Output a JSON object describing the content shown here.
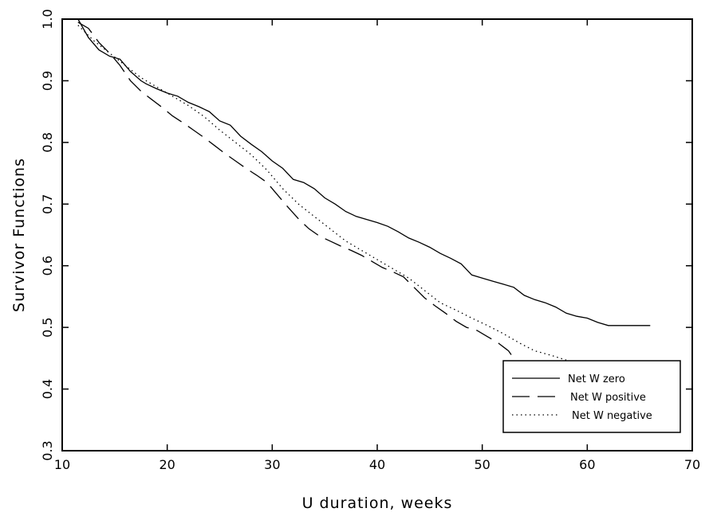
{
  "chart_data": {
    "type": "line",
    "title": "",
    "xlabel": "U duration, weeks",
    "ylabel": "Survivor Functions",
    "xlim": [
      10,
      70
    ],
    "ylim": [
      0.3,
      1.0
    ],
    "x_ticks": [
      "10",
      "20",
      "30",
      "40",
      "50",
      "60",
      "70"
    ],
    "y_ticks": [
      "0.3",
      "0.4",
      "0.5",
      "0.6",
      "0.7",
      "0.8",
      "0.9",
      "1.0"
    ],
    "grid": false,
    "legend_position": "bottom-right",
    "series": [
      {
        "name": "Net W zero",
        "style": "solid",
        "x": [
          11.5,
          12.5,
          13.5,
          14.5,
          15.5,
          16.5,
          17.5,
          18,
          19,
          20,
          21,
          22,
          23,
          24,
          25,
          26,
          27,
          28,
          29,
          30,
          31,
          32,
          33,
          34,
          35,
          36,
          37,
          38,
          39,
          40,
          41,
          42,
          43,
          44,
          45,
          46,
          47,
          48,
          49,
          50,
          51,
          52,
          53,
          54,
          55,
          56,
          57,
          58,
          59,
          60,
          61,
          62,
          63,
          64,
          65,
          66
        ],
        "y": [
          1.0,
          0.97,
          0.95,
          0.94,
          0.935,
          0.915,
          0.9,
          0.895,
          0.887,
          0.88,
          0.875,
          0.865,
          0.858,
          0.85,
          0.835,
          0.828,
          0.81,
          0.797,
          0.785,
          0.77,
          0.758,
          0.74,
          0.735,
          0.725,
          0.71,
          0.7,
          0.688,
          0.68,
          0.675,
          0.67,
          0.664,
          0.655,
          0.645,
          0.638,
          0.63,
          0.62,
          0.612,
          0.603,
          0.585,
          0.58,
          0.575,
          0.57,
          0.565,
          0.552,
          0.545,
          0.54,
          0.533,
          0.523,
          0.518,
          0.515,
          0.508,
          0.503,
          0.503,
          0.503,
          0.503,
          0.503
        ]
      },
      {
        "name": "Net W positive",
        "style": "dashed",
        "x": [
          11.5,
          12.5,
          13.5,
          14.5,
          15.5,
          16.5,
          17.5,
          18.5,
          19.5,
          20.5,
          21.5,
          22.5,
          23.5,
          24.5,
          25.5,
          26.5,
          27.5,
          28.5,
          29.5,
          30.5,
          31.5,
          32.5,
          33.5,
          34.5,
          35.5,
          36.5,
          37.5,
          38.5,
          39.5,
          40.5,
          41.5,
          42.5,
          43.5,
          44.5,
          45.5,
          46.5,
          47.5,
          48.5,
          49.5,
          50.5,
          51.5,
          52.5,
          53
        ],
        "y": [
          0.995,
          0.985,
          0.962,
          0.945,
          0.925,
          0.9,
          0.883,
          0.87,
          0.857,
          0.843,
          0.832,
          0.82,
          0.808,
          0.795,
          0.782,
          0.77,
          0.758,
          0.747,
          0.735,
          0.715,
          0.695,
          0.676,
          0.66,
          0.648,
          0.64,
          0.632,
          0.625,
          0.617,
          0.607,
          0.597,
          0.59,
          0.582,
          0.565,
          0.548,
          0.535,
          0.523,
          0.51,
          0.5,
          0.495,
          0.485,
          0.475,
          0.462,
          0.45
        ]
      },
      {
        "name": "Net W negative",
        "style": "dotted",
        "x": [
          11.5,
          13,
          14.5,
          16,
          17.5,
          19,
          20.5,
          22,
          23.5,
          25,
          26.5,
          28,
          29.5,
          31,
          32.5,
          34,
          35.5,
          37,
          38.5,
          40,
          41.5,
          43,
          44.5,
          46,
          47.5,
          49,
          50.5,
          52,
          53.5,
          55,
          56.5,
          58
        ],
        "y": [
          0.99,
          0.965,
          0.945,
          0.925,
          0.905,
          0.89,
          0.875,
          0.86,
          0.842,
          0.82,
          0.8,
          0.78,
          0.755,
          0.725,
          0.7,
          0.68,
          0.66,
          0.64,
          0.625,
          0.61,
          0.595,
          0.58,
          0.56,
          0.54,
          0.528,
          0.515,
          0.503,
          0.49,
          0.475,
          0.462,
          0.455,
          0.447
        ]
      }
    ]
  },
  "colors": {
    "axis": "#000000",
    "background": "#ffffff"
  }
}
